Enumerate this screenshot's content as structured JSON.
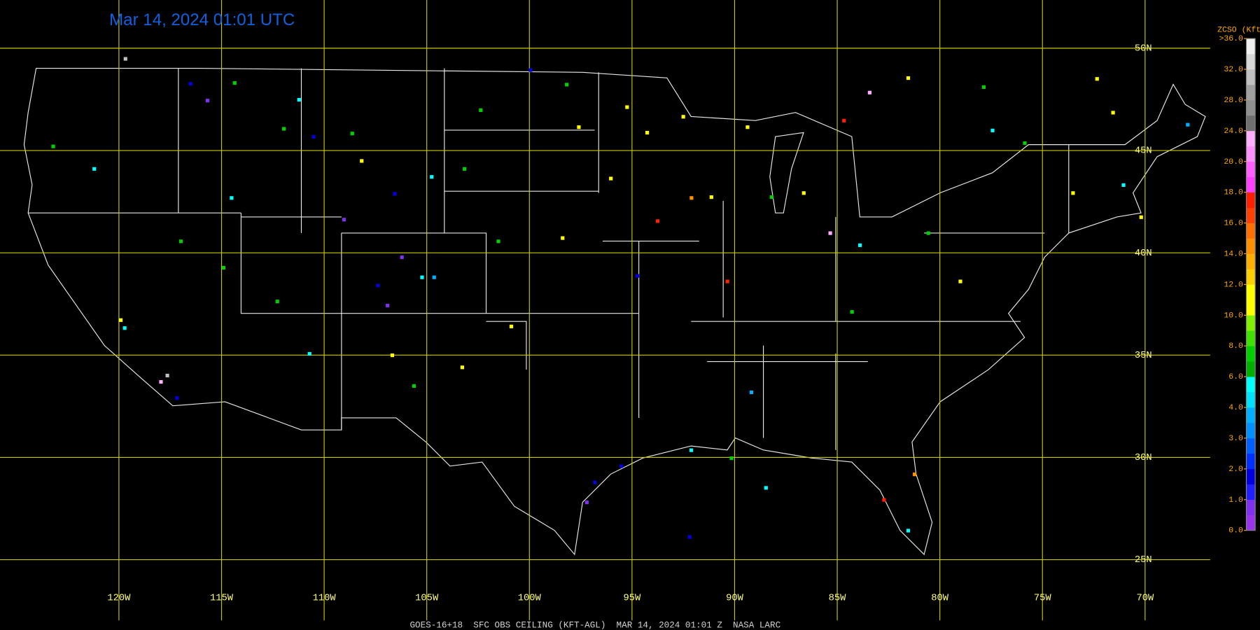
{
  "title": "Mar 14, 2024 01:01 UTC",
  "caption": "GOES-16+18  SFC OBS CEILING (KFT-AGL)  MAR 14, 2024 01:01 Z  NASA LARC",
  "lon_ticks": [
    {
      "value": -120,
      "label": "120W"
    },
    {
      "value": -115,
      "label": "115W"
    },
    {
      "value": -110,
      "label": "110W"
    },
    {
      "value": -105,
      "label": "105W"
    },
    {
      "value": -100,
      "label": "100W"
    },
    {
      "value": -95,
      "label": "95W"
    },
    {
      "value": -90,
      "label": "90W"
    },
    {
      "value": -85,
      "label": "85W"
    },
    {
      "value": -80,
      "label": "80W"
    },
    {
      "value": -75,
      "label": "75W"
    },
    {
      "value": -70,
      "label": "70W"
    }
  ],
  "lat_ticks": [
    {
      "value": 50,
      "label": "50N"
    },
    {
      "value": 45,
      "label": "45N"
    },
    {
      "value": 40,
      "label": "40N"
    },
    {
      "value": 35,
      "label": "35N"
    },
    {
      "value": 30,
      "label": "30N"
    },
    {
      "value": 25,
      "label": "25N"
    }
  ],
  "colorbar": {
    "title": "ZCSO (Kft)",
    "ticks": [
      {
        "value": 0,
        "label": "0.0"
      },
      {
        "value": 1,
        "label": "1.0"
      },
      {
        "value": 2,
        "label": "2.0"
      },
      {
        "value": 3,
        "label": "3.0"
      },
      {
        "value": 4,
        "label": "4.0"
      },
      {
        "value": 6,
        "label": "6.0"
      },
      {
        "value": 8,
        "label": "8.0"
      },
      {
        "value": 10,
        "label": "10.0"
      },
      {
        "value": 12,
        "label": "12.0"
      },
      {
        "value": 14,
        "label": "14.0"
      },
      {
        "value": 16,
        "label": "16.0"
      },
      {
        "value": 18,
        "label": "18.0"
      },
      {
        "value": 20,
        "label": "20.0"
      },
      {
        "value": 24,
        "label": "24.0"
      },
      {
        "value": 28,
        "label": "28.0"
      },
      {
        "value": 32,
        "label": "32.0"
      },
      {
        "value": 36,
        "label": ">36.0"
      }
    ],
    "colors": [
      "#9933ee",
      "#8030f0",
      "#2020ff",
      "#0000e0",
      "#0030ff",
      "#0060ff",
      "#0090ff",
      "#00b0ff",
      "#00e0ff",
      "#00ffff",
      "#00b000",
      "#00d000",
      "#40e000",
      "#80f000",
      "#ffff00",
      "#ffff00",
      "#ffd000",
      "#ffb000",
      "#ff9000",
      "#ff7000",
      "#ff4000",
      "#ff2000",
      "#ff40ff",
      "#ff60ff",
      "#ff90ff",
      "#ffb0ff",
      "#707070",
      "#909090",
      "#a0a0a0",
      "#c0c0c0",
      "#d8d8d8",
      "#f0f0f0"
    ]
  },
  "stations": [
    {
      "lon": -123.21,
      "lat": 45.21,
      "ceiling": 7.5
    },
    {
      "lon": -121.21,
      "lat": 44.11,
      "ceiling": 5.5
    },
    {
      "lon": -116.52,
      "lat": 48.27,
      "ceiling": 1.5
    },
    {
      "lon": -114.37,
      "lat": 48.31,
      "ceiling": 7.5
    },
    {
      "lon": -111.23,
      "lat": 47.49,
      "ceiling": 5.5
    },
    {
      "lon": -111.97,
      "lat": 46.07,
      "ceiling": 7.5
    },
    {
      "lon": -110.52,
      "lat": 45.68,
      "ceiling": 1.5
    },
    {
      "lon": -108.64,
      "lat": 45.84,
      "ceiling": 7.5
    },
    {
      "lon": -114.52,
      "lat": 42.69,
      "ceiling": 5.5
    },
    {
      "lon": -109.04,
      "lat": 41.63,
      "ceiling": 0.5
    },
    {
      "lon": -106.57,
      "lat": 42.89,
      "ceiling": 1.5
    },
    {
      "lon": -108.18,
      "lat": 44.5,
      "ceiling": 11
    },
    {
      "lon": -104.77,
      "lat": 43.72,
      "ceiling": 5.5
    },
    {
      "lon": -103.17,
      "lat": 44.11,
      "ceiling": 7.5
    },
    {
      "lon": -99.95,
      "lat": 48.94,
      "ceiling": 1.5
    },
    {
      "lon": -98.19,
      "lat": 48.23,
      "ceiling": 7.5
    },
    {
      "lon": -97.6,
      "lat": 46.15,
      "ceiling": 11
    },
    {
      "lon": -95.25,
      "lat": 47.13,
      "ceiling": 11
    },
    {
      "lon": -94.27,
      "lat": 45.88,
      "ceiling": 11
    },
    {
      "lon": -92.51,
      "lat": 46.66,
      "ceiling": 11
    },
    {
      "lon": -89.38,
      "lat": 46.15,
      "ceiling": 11
    },
    {
      "lon": -84.68,
      "lat": 46.47,
      "ceiling": 17
    },
    {
      "lon": -96.04,
      "lat": 43.64,
      "ceiling": 11
    },
    {
      "lon": -93.76,
      "lat": 41.56,
      "ceiling": 17
    },
    {
      "lon": -92.11,
      "lat": 42.69,
      "ceiling": 14.5
    },
    {
      "lon": -86.64,
      "lat": 42.93,
      "ceiling": 11
    },
    {
      "lon": -85.35,
      "lat": 40.97,
      "ceiling": 23
    },
    {
      "lon": -83.9,
      "lat": 40.38,
      "ceiling": 5.5
    },
    {
      "lon": -80.57,
      "lat": 40.97,
      "ceiling": 7.5
    },
    {
      "lon": -79.01,
      "lat": 38.61,
      "ceiling": 11
    },
    {
      "lon": -77.87,
      "lat": 48.11,
      "ceiling": 7.5
    },
    {
      "lon": -72.35,
      "lat": 48.51,
      "ceiling": 11
    },
    {
      "lon": -71.57,
      "lat": 46.86,
      "ceiling": 11
    },
    {
      "lon": -70.2,
      "lat": 41.75,
      "ceiling": 11
    },
    {
      "lon": -73.52,
      "lat": 42.93,
      "ceiling": 11
    },
    {
      "lon": -71.06,
      "lat": 43.32,
      "ceiling": 5.5
    },
    {
      "lon": -67.93,
      "lat": 46.27,
      "ceiling": 3.5
    },
    {
      "lon": -77.44,
      "lat": 45.99,
      "ceiling": 5.5
    },
    {
      "lon": -75.87,
      "lat": 45.37,
      "ceiling": 7.5
    },
    {
      "lon": -106.22,
      "lat": 39.79,
      "ceiling": 0.5
    },
    {
      "lon": -105.24,
      "lat": 38.81,
      "ceiling": 5.5
    },
    {
      "lon": -104.65,
      "lat": 38.81,
      "ceiling": 3.5
    },
    {
      "lon": -107.39,
      "lat": 38.41,
      "ceiling": 1.5
    },
    {
      "lon": -106.92,
      "lat": 37.43,
      "ceiling": 0.5
    },
    {
      "lon": -112.29,
      "lat": 37.63,
      "ceiling": 7.5
    },
    {
      "lon": -110.72,
      "lat": 35.07,
      "ceiling": 5.5
    },
    {
      "lon": -106.69,
      "lat": 35.0,
      "ceiling": 11
    },
    {
      "lon": -105.63,
      "lat": 33.5,
      "ceiling": 7.5
    },
    {
      "lon": -103.28,
      "lat": 34.41,
      "ceiling": 11
    },
    {
      "lon": -100.89,
      "lat": 36.41,
      "ceiling": 11
    },
    {
      "lon": -119.73,
      "lat": 36.33,
      "ceiling": 5.5
    },
    {
      "lon": -117.96,
      "lat": 33.7,
      "ceiling": 23
    },
    {
      "lon": -117.18,
      "lat": 32.91,
      "ceiling": 1.5
    },
    {
      "lon": -117.65,
      "lat": 34.01,
      "ceiling": 30
    },
    {
      "lon": -119.92,
      "lat": 36.72,
      "ceiling": 11
    },
    {
      "lon": -95.53,
      "lat": 29.58,
      "ceiling": 1.5
    },
    {
      "lon": -97.21,
      "lat": 27.81,
      "ceiling": 0.5
    },
    {
      "lon": -96.82,
      "lat": 28.79,
      "ceiling": 1.5
    },
    {
      "lon": -92.12,
      "lat": 30.36,
      "ceiling": 5.5
    },
    {
      "lon": -90.16,
      "lat": 29.97,
      "ceiling": 7.5
    },
    {
      "lon": -89.19,
      "lat": 33.19,
      "ceiling": 3.5
    },
    {
      "lon": -88.48,
      "lat": 28.52,
      "ceiling": 5.5
    },
    {
      "lon": -82.73,
      "lat": 27.93,
      "ceiling": 17
    },
    {
      "lon": -81.55,
      "lat": 26.43,
      "ceiling": 5.5
    },
    {
      "lon": -81.24,
      "lat": 29.18,
      "ceiling": 14.5
    },
    {
      "lon": -92.2,
      "lat": 26.12,
      "ceiling": 1.5
    },
    {
      "lon": -90.36,
      "lat": 38.61,
      "ceiling": 17
    },
    {
      "lon": -94.75,
      "lat": 38.88,
      "ceiling": 1.5
    },
    {
      "lon": -98.39,
      "lat": 40.73,
      "ceiling": 11
    },
    {
      "lon": -101.52,
      "lat": 40.57,
      "ceiling": 7.5
    },
    {
      "lon": -84.29,
      "lat": 37.12,
      "ceiling": 7.5
    },
    {
      "lon": -83.43,
      "lat": 47.84,
      "ceiling": 23
    },
    {
      "lon": -81.55,
      "lat": 48.55,
      "ceiling": 11
    },
    {
      "lon": -119.69,
      "lat": 49.49,
      "ceiling": 30
    },
    {
      "lon": -115.69,
      "lat": 47.45,
      "ceiling": 0.5
    },
    {
      "lon": -116.99,
      "lat": 40.57,
      "ceiling": 7.5
    },
    {
      "lon": -114.91,
      "lat": 39.28,
      "ceiling": 7.5
    },
    {
      "lon": -102.38,
      "lat": 46.98,
      "ceiling": 7.5
    },
    {
      "lon": -91.14,
      "lat": 42.73,
      "ceiling": 11
    },
    {
      "lon": -88.21,
      "lat": 42.73,
      "ceiling": 7.5
    }
  ]
}
